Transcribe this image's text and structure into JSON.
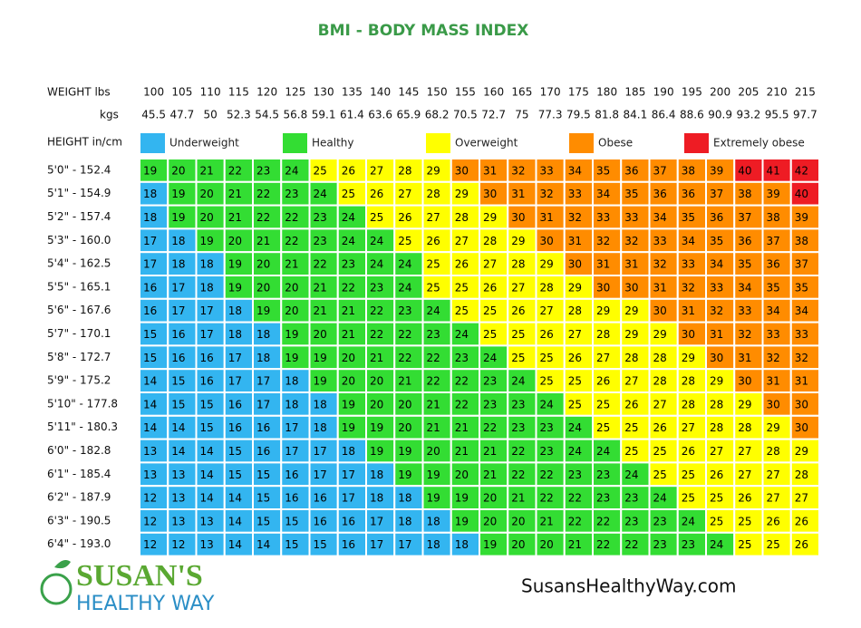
{
  "title": "BMI - BODY MASS INDEX",
  "weight_label": "WEIGHT lbs",
  "kgs_label": "kgs",
  "height_label": "HEIGHT in/cm",
  "lbs": [
    100,
    105,
    110,
    115,
    120,
    125,
    130,
    135,
    140,
    145,
    150,
    155,
    160,
    165,
    170,
    175,
    180,
    185,
    190,
    195,
    200,
    205,
    210,
    215
  ],
  "kgs": [
    45.5,
    47.7,
    50.0,
    52.3,
    54.5,
    56.8,
    59.1,
    61.4,
    63.6,
    65.9,
    68.2,
    70.5,
    72.7,
    75.0,
    77.3,
    79.5,
    81.8,
    84.1,
    86.4,
    88.6,
    90.9,
    93.2,
    95.5,
    97.7
  ],
  "legend": [
    {
      "label": "Underweight",
      "color": "#33b5f0",
      "min": 0
    },
    {
      "label": "Healthy",
      "color": "#33dd33",
      "min": 19
    },
    {
      "label": "Overweight",
      "color": "#ffff00",
      "min": 25
    },
    {
      "label": "Obese",
      "color": "#ff8c00",
      "min": 30
    },
    {
      "label": "Extremely obese",
      "color": "#ee1c24",
      "min": 40
    }
  ],
  "rows": [
    {
      "height": "5'0\" - 152.4",
      "values": [
        19,
        20,
        21,
        22,
        23,
        24,
        25,
        26,
        27,
        28,
        29,
        30,
        31,
        32,
        33,
        34,
        35,
        36,
        37,
        38,
        39,
        40,
        41,
        42
      ]
    },
    {
      "height": "5'1\" - 154.9",
      "values": [
        18,
        19,
        20,
        21,
        22,
        23,
        24,
        25,
        26,
        27,
        28,
        29,
        30,
        31,
        32,
        33,
        34,
        35,
        36,
        36,
        37,
        38,
        39,
        40
      ]
    },
    {
      "height": "5'2\" - 157.4",
      "values": [
        18,
        19,
        20,
        21,
        22,
        22,
        23,
        24,
        25,
        26,
        27,
        28,
        29,
        30,
        31,
        32,
        33,
        33,
        34,
        35,
        36,
        37,
        38,
        39
      ]
    },
    {
      "height": "5'3\" - 160.0",
      "values": [
        17,
        18,
        19,
        20,
        21,
        22,
        23,
        24,
        24,
        25,
        26,
        27,
        28,
        29,
        30,
        31,
        32,
        32,
        33,
        34,
        35,
        36,
        37,
        38
      ]
    },
    {
      "height": "5'4\" - 162.5",
      "values": [
        17,
        18,
        18,
        19,
        20,
        21,
        22,
        23,
        24,
        24,
        25,
        26,
        27,
        28,
        29,
        30,
        31,
        31,
        32,
        33,
        34,
        35,
        36,
        37
      ]
    },
    {
      "height": "5'5\" - 165.1",
      "values": [
        16,
        17,
        18,
        19,
        20,
        20,
        21,
        22,
        23,
        24,
        25,
        25,
        26,
        27,
        28,
        29,
        30,
        30,
        31,
        32,
        33,
        34,
        35,
        35
      ]
    },
    {
      "height": "5'6\" - 167.6",
      "values": [
        16,
        17,
        17,
        18,
        19,
        20,
        21,
        21,
        22,
        23,
        24,
        25,
        25,
        26,
        27,
        28,
        29,
        29,
        30,
        31,
        32,
        33,
        34,
        34
      ]
    },
    {
      "height": "5'7\" - 170.1",
      "values": [
        15,
        16,
        17,
        18,
        18,
        19,
        20,
        21,
        22,
        22,
        23,
        24,
        25,
        25,
        26,
        27,
        28,
        29,
        29,
        30,
        31,
        32,
        33,
        33
      ]
    },
    {
      "height": "5'8\" - 172.7",
      "values": [
        15,
        16,
        16,
        17,
        18,
        19,
        19,
        20,
        21,
        22,
        22,
        23,
        24,
        25,
        25,
        26,
        27,
        28,
        28,
        29,
        30,
        31,
        32,
        32
      ]
    },
    {
      "height": "5'9\" - 175.2",
      "values": [
        14,
        15,
        16,
        17,
        17,
        18,
        19,
        20,
        20,
        21,
        22,
        22,
        23,
        24,
        25,
        25,
        26,
        27,
        28,
        28,
        29,
        30,
        31,
        31
      ]
    },
    {
      "height": "5'10\" - 177.8",
      "values": [
        14,
        15,
        15,
        16,
        17,
        18,
        18,
        19,
        20,
        20,
        21,
        22,
        23,
        23,
        24,
        25,
        25,
        26,
        27,
        28,
        28,
        29,
        30,
        30
      ]
    },
    {
      "height": "5'11\" - 180.3",
      "values": [
        14,
        14,
        15,
        16,
        16,
        17,
        18,
        19,
        19,
        20,
        21,
        21,
        22,
        23,
        23,
        24,
        25,
        25,
        26,
        27,
        28,
        28,
        29,
        30
      ]
    },
    {
      "height": "6'0\" - 182.8",
      "values": [
        13,
        14,
        14,
        15,
        16,
        17,
        17,
        18,
        19,
        19,
        20,
        21,
        21,
        22,
        23,
        24,
        24,
        25,
        25,
        26,
        27,
        27,
        28,
        29
      ]
    },
    {
      "height": "6'1\" - 185.4",
      "values": [
        13,
        13,
        14,
        15,
        15,
        16,
        17,
        17,
        18,
        19,
        19,
        20,
        21,
        22,
        22,
        23,
        23,
        24,
        25,
        25,
        26,
        27,
        27,
        28
      ]
    },
    {
      "height": "6'2\" - 187.9",
      "values": [
        12,
        13,
        14,
        14,
        15,
        16,
        16,
        17,
        18,
        18,
        19,
        19,
        20,
        21,
        22,
        22,
        23,
        23,
        24,
        25,
        25,
        26,
        27,
        27
      ]
    },
    {
      "height": "6'3\" - 190.5",
      "values": [
        12,
        13,
        13,
        14,
        15,
        15,
        16,
        16,
        17,
        18,
        18,
        19,
        20,
        20,
        21,
        22,
        22,
        23,
        23,
        24,
        25,
        25,
        26,
        26
      ]
    },
    {
      "height": "6'4\" - 193.0",
      "values": [
        12,
        12,
        13,
        14,
        14,
        15,
        15,
        16,
        17,
        17,
        18,
        18,
        19,
        20,
        20,
        21,
        22,
        22,
        23,
        23,
        24,
        25,
        25,
        26
      ]
    }
  ],
  "logo": {
    "line1": "SUSAN'S",
    "line2": "HEALTHY WAY"
  },
  "website": "SusansHealthyWay.com"
}
